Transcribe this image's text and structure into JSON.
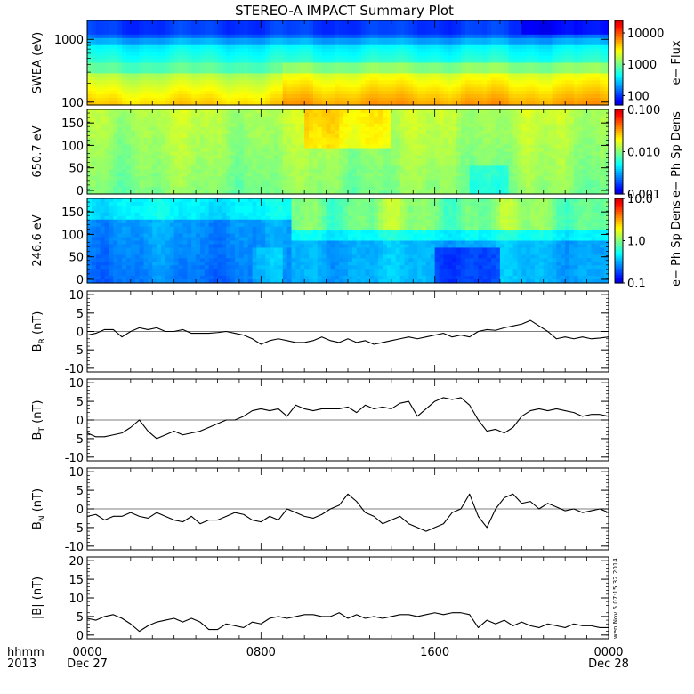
{
  "title": "STEREO-A IMPACT Summary Plot",
  "time_axis": {
    "unit_label": "hhmm",
    "year_label": "2013",
    "ticks": [
      {
        "t": 0,
        "label": "0000",
        "date": "Dec 27"
      },
      {
        "t": 8,
        "label": "0800",
        "date": ""
      },
      {
        "t": 16,
        "label": "1600",
        "date": ""
      },
      {
        "t": 24,
        "label": "0000",
        "date": "Dec 28"
      }
    ]
  },
  "stamp": "wen Nov  5 07:15:32 2014",
  "chart_data": [
    {
      "type": "heatmap",
      "ylabel": "SWEA (eV)",
      "yscale": "log",
      "ylim": [
        90,
        2000
      ],
      "yticks": [
        {
          "v": 1000,
          "label": "1000"
        },
        {
          "v": 100,
          "label": "100"
        }
      ],
      "colorbar": {
        "label": "e− Flux",
        "scale": "log",
        "range": [
          50,
          25000
        ],
        "ticks": [
          {
            "v": 10000,
            "label": "10000"
          },
          {
            "v": 1000,
            "label": "1000"
          },
          {
            "v": 100,
            "label": "100"
          }
        ]
      },
      "description_rows": [
        "high energy: blue/purple",
        "~500 eV: cyan",
        "low energy: green/yellow"
      ]
    },
    {
      "type": "heatmap",
      "ylabel": "650.7 eV",
      "ylim": [
        -8,
        180
      ],
      "yticks": [
        {
          "v": 150,
          "label": "150"
        },
        {
          "v": 100,
          "label": "100"
        },
        {
          "v": 50,
          "label": "50"
        },
        {
          "v": 0,
          "label": "0"
        }
      ],
      "colorbar": {
        "label": "e− Ph Sp Dens",
        "scale": "log",
        "range": [
          0.001,
          0.1
        ],
        "ticks": [
          {
            "v": 0.1,
            "label": "0.100"
          },
          {
            "v": 0.01,
            "label": "0.010"
          },
          {
            "v": 0.001,
            "label": "0.001"
          }
        ]
      }
    },
    {
      "type": "heatmap",
      "ylabel": "246.6 eV",
      "ylim": [
        -8,
        180
      ],
      "yticks": [
        {
          "v": 150,
          "label": "150"
        },
        {
          "v": 100,
          "label": "100"
        },
        {
          "v": 50,
          "label": "50"
        },
        {
          "v": 0,
          "label": "0"
        }
      ],
      "colorbar": {
        "label": "e− Ph Sp Dens",
        "scale": "log",
        "range": [
          0.1,
          10
        ],
        "ticks": [
          {
            "v": 10,
            "label": "10.0"
          },
          {
            "v": 1,
            "label": "1.0"
          },
          {
            "v": 0.1,
            "label": "0.1"
          }
        ]
      }
    },
    {
      "type": "line",
      "ylabel": "B",
      "ylabel_sub": "R",
      "ylabel_unit": " (nT)",
      "ylim": [
        -11,
        11
      ],
      "yticks": [
        10,
        5,
        0,
        -5,
        -10
      ],
      "x": [
        0,
        0.4,
        0.8,
        1.2,
        1.6,
        2,
        2.4,
        2.8,
        3.2,
        3.6,
        4,
        4.4,
        4.8,
        5.2,
        5.6,
        6,
        6.4,
        6.8,
        7.2,
        7.6,
        8,
        8.4,
        8.8,
        9.2,
        9.6,
        10,
        10.4,
        10.8,
        11.2,
        11.6,
        12,
        12.4,
        12.8,
        13.2,
        13.6,
        14,
        14.4,
        14.8,
        15.2,
        15.6,
        16,
        16.4,
        16.8,
        17.2,
        17.6,
        18,
        18.4,
        18.8,
        19.2,
        19.6,
        20,
        20.4,
        20.8,
        21.2,
        21.6,
        22,
        22.4,
        22.8,
        23.2,
        23.6,
        24
      ],
      "values": [
        -1,
        -0.5,
        0.5,
        0.5,
        -1.5,
        0,
        1,
        0.5,
        1,
        0,
        0,
        0.5,
        -0.5,
        -0.5,
        -0.5,
        -0.3,
        0,
        -0.5,
        -1,
        -2,
        -3.5,
        -2.5,
        -2,
        -2.5,
        -3,
        -3,
        -2.5,
        -1.5,
        -2.5,
        -3,
        -2,
        -3,
        -2.5,
        -3.5,
        -3,
        -2.5,
        -2,
        -1.5,
        -2,
        -1.5,
        -1,
        -0.5,
        -1.5,
        -1,
        -1.5,
        0,
        0.5,
        0.3,
        1,
        1.5,
        2,
        3,
        1.5,
        0,
        -2,
        -1.5,
        -2,
        -1.5,
        -2,
        -1.8,
        -1.5
      ]
    },
    {
      "type": "line",
      "ylabel": "B",
      "ylabel_sub": "T",
      "ylabel_unit": " (nT)",
      "ylim": [
        -11,
        11
      ],
      "yticks": [
        10,
        5,
        0,
        -5,
        -10
      ],
      "x": [
        0,
        0.4,
        0.8,
        1.2,
        1.6,
        2,
        2.4,
        2.8,
        3.2,
        3.6,
        4,
        4.4,
        4.8,
        5.2,
        5.6,
        6,
        6.4,
        6.8,
        7.2,
        7.6,
        8,
        8.4,
        8.8,
        9.2,
        9.6,
        10,
        10.4,
        10.8,
        11.2,
        11.6,
        12,
        12.4,
        12.8,
        13.2,
        13.6,
        14,
        14.4,
        14.8,
        15.2,
        15.6,
        16,
        16.4,
        16.8,
        17.2,
        17.6,
        18,
        18.4,
        18.8,
        19.2,
        19.6,
        20,
        20.4,
        20.8,
        21.2,
        21.6,
        22,
        22.4,
        22.8,
        23.2,
        23.6,
        24
      ],
      "values": [
        -3.5,
        -4.5,
        -4.5,
        -4,
        -3.5,
        -2,
        0,
        -3,
        -5,
        -4,
        -3,
        -4,
        -3.5,
        -3,
        -2,
        -1,
        0,
        0,
        1,
        2.5,
        3,
        2.5,
        3,
        1,
        4,
        3,
        2.5,
        3,
        3,
        3,
        3.5,
        2,
        4,
        3,
        3.5,
        3,
        4.5,
        5,
        1,
        3,
        5,
        6,
        5.5,
        6,
        4,
        0,
        -3,
        -2.5,
        -3.5,
        -2,
        1,
        2.5,
        3,
        2.5,
        3,
        2.5,
        2,
        1,
        1.5,
        1.5,
        1
      ]
    },
    {
      "type": "line",
      "ylabel": "B",
      "ylabel_sub": "N",
      "ylabel_unit": " (nT)",
      "ylim": [
        -11,
        11
      ],
      "yticks": [
        10,
        5,
        0,
        -5,
        -10
      ],
      "x": [
        0,
        0.4,
        0.8,
        1.2,
        1.6,
        2,
        2.4,
        2.8,
        3.2,
        3.6,
        4,
        4.4,
        4.8,
        5.2,
        5.6,
        6,
        6.4,
        6.8,
        7.2,
        7.6,
        8,
        8.4,
        8.8,
        9.2,
        9.6,
        10,
        10.4,
        10.8,
        11.2,
        11.6,
        12,
        12.4,
        12.8,
        13.2,
        13.6,
        14,
        14.4,
        14.8,
        15.2,
        15.6,
        16,
        16.4,
        16.8,
        17.2,
        17.6,
        18,
        18.4,
        18.8,
        19.2,
        19.6,
        20,
        20.4,
        20.8,
        21.2,
        21.6,
        22,
        22.4,
        22.8,
        23.2,
        23.6,
        24
      ],
      "values": [
        -2,
        -1.5,
        -3,
        -2,
        -2,
        -1,
        -2,
        -2.5,
        -1,
        -2,
        -3,
        -3.5,
        -2,
        -4,
        -3,
        -3,
        -2,
        -1,
        -1.5,
        -3,
        -3.5,
        -2,
        -3,
        0,
        -1,
        -2,
        -2.5,
        -1.5,
        0,
        1,
        4,
        2,
        -1,
        -2,
        -4,
        -3,
        -2,
        -4,
        -5,
        -6,
        -5,
        -4,
        -1,
        0,
        4,
        -2,
        -5,
        0,
        3,
        4,
        1.5,
        2,
        0,
        1.5,
        0.5,
        -0.5,
        0,
        -1,
        -0.5,
        0,
        -1
      ]
    },
    {
      "type": "line",
      "ylabel": "|B|",
      "ylabel_sub": "",
      "ylabel_unit": " (nT)",
      "ylim": [
        -1,
        21
      ],
      "yticks": [
        20,
        15,
        10,
        5,
        0
      ],
      "x": [
        0,
        0.4,
        0.8,
        1.2,
        1.6,
        2,
        2.4,
        2.8,
        3.2,
        3.6,
        4,
        4.4,
        4.8,
        5.2,
        5.6,
        6,
        6.4,
        6.8,
        7.2,
        7.6,
        8,
        8.4,
        8.8,
        9.2,
        9.6,
        10,
        10.4,
        10.8,
        11.2,
        11.6,
        12,
        12.4,
        12.8,
        13.2,
        13.6,
        14,
        14.4,
        14.8,
        15.2,
        15.6,
        16,
        16.4,
        16.8,
        17.2,
        17.6,
        18,
        18.4,
        18.8,
        19.2,
        19.6,
        20,
        20.4,
        20.8,
        21.2,
        21.6,
        22,
        22.4,
        22.8,
        23.2,
        23.6,
        24
      ],
      "values": [
        4.5,
        4,
        5,
        5.5,
        4.5,
        3,
        1,
        2.5,
        3.5,
        4,
        4.5,
        3.5,
        4.5,
        3.5,
        1.5,
        1.5,
        3,
        2.5,
        2,
        3.5,
        3,
        4.5,
        5,
        4.5,
        5,
        5.5,
        5.5,
        5,
        5,
        6,
        4.5,
        5.5,
        4.5,
        5,
        4.5,
        5,
        5.5,
        5.5,
        5,
        5.5,
        6,
        5.5,
        6,
        6,
        5.5,
        2,
        4,
        3,
        4,
        2.5,
        3.5,
        2.5,
        2,
        3,
        2.5,
        2,
        3,
        2.5,
        2.5,
        2,
        2
      ]
    }
  ]
}
